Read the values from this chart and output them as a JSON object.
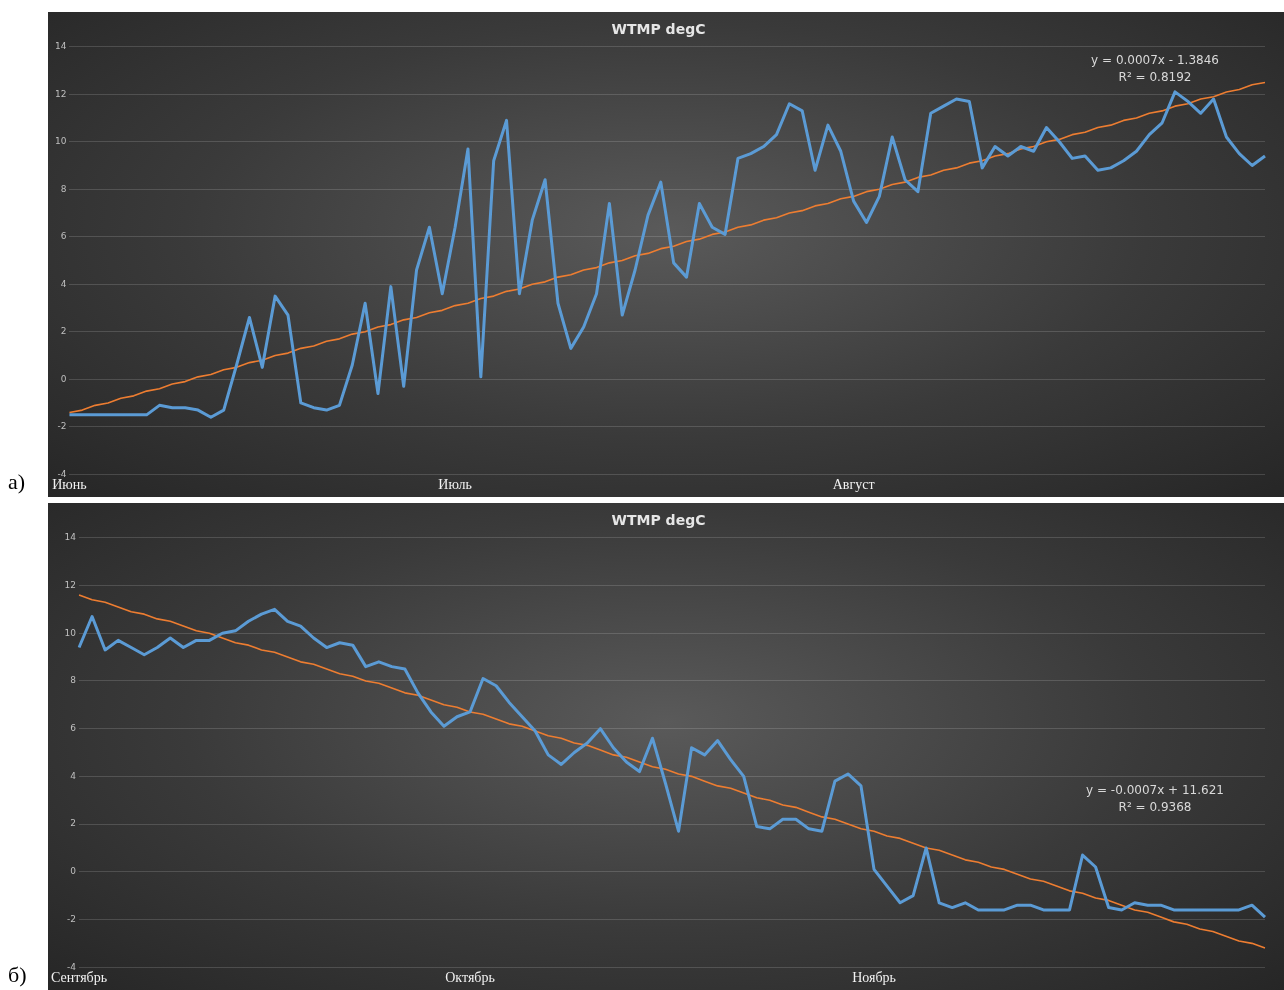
{
  "chart_data": [
    {
      "type": "line",
      "title": "WTMP degC",
      "categories": [
        "Июнь",
        null,
        null,
        null,
        null,
        null,
        null,
        null,
        null,
        null,
        null,
        null,
        null,
        null,
        null,
        null,
        null,
        null,
        null,
        null,
        null,
        null,
        null,
        null,
        null,
        null,
        null,
        null,
        null,
        null,
        "Июль",
        null,
        null,
        null,
        null,
        null,
        null,
        null,
        null,
        null,
        null,
        null,
        null,
        null,
        null,
        null,
        null,
        null,
        null,
        null,
        null,
        null,
        null,
        null,
        null,
        null,
        null,
        null,
        null,
        null,
        null,
        "Август",
        null,
        null,
        null,
        null,
        null,
        null,
        null,
        null,
        null,
        null,
        null,
        null,
        null,
        null,
        null,
        null,
        null,
        null,
        null,
        null,
        null,
        null,
        null,
        null,
        null,
        null,
        null,
        null,
        null,
        null,
        null,
        null
      ],
      "ylim": [
        -4,
        14
      ],
      "yticks": [
        -4,
        -2,
        0,
        2,
        4,
        6,
        8,
        10,
        12,
        14
      ],
      "grid": "y",
      "marker": "none",
      "annotations": [
        "а)",
        "y = 0.0007x - 1.3846",
        "R² = 0.8192"
      ],
      "series": [
        {
          "color": "#5b9bd5",
          "values": [
            -1.5,
            -1.5,
            -1.5,
            -1.5,
            -1.5,
            -1.5,
            -1.5,
            -1.1,
            -1.2,
            -1.2,
            -1.3,
            -1.6,
            -1.3,
            0.6,
            2.6,
            0.5,
            3.5,
            2.7,
            -1.0,
            -1.2,
            -1.3,
            -1.1,
            0.6,
            3.2,
            -0.6,
            3.9,
            -0.3,
            4.6,
            6.4,
            3.6,
            6.4,
            9.7,
            0.1,
            9.2,
            10.9,
            3.6,
            6.7,
            8.4,
            3.2,
            1.3,
            2.2,
            3.6,
            7.4,
            2.7,
            4.6,
            6.9,
            8.3,
            4.9,
            4.3,
            7.4,
            6.4,
            6.1,
            9.3,
            9.5,
            9.8,
            10.3,
            11.6,
            11.3,
            8.8,
            10.7,
            9.6,
            7.5,
            6.6,
            7.7,
            10.2,
            8.4,
            7.9,
            11.2,
            11.5,
            11.8,
            11.7,
            8.9,
            9.8,
            9.4,
            9.8,
            9.6,
            10.6,
            10.0,
            9.3,
            9.4,
            8.8,
            8.9,
            9.2,
            9.6,
            10.3,
            10.8,
            12.1,
            11.7,
            11.2,
            11.8,
            10.2,
            9.5,
            9.0,
            9.4
          ]
        },
        {
          "type": "line",
          "color": "#ed7d31",
          "values": [
            -1.4,
            -1.3,
            -1.1,
            -1.0,
            -0.8,
            -0.7,
            -0.5,
            -0.4,
            -0.2,
            -0.1,
            0.1,
            0.2,
            0.4,
            0.5,
            0.7,
            0.8,
            1.0,
            1.1,
            1.3,
            1.4,
            1.6,
            1.7,
            1.9,
            2.0,
            2.2,
            2.3,
            2.5,
            2.6,
            2.8,
            2.9,
            3.1,
            3.2,
            3.4,
            3.5,
            3.7,
            3.8,
            4.0,
            4.1,
            4.3,
            4.4,
            4.6,
            4.7,
            4.9,
            5.0,
            5.2,
            5.3,
            5.5,
            5.6,
            5.8,
            5.9,
            6.1,
            6.2,
            6.4,
            6.5,
            6.7,
            6.8,
            7.0,
            7.1,
            7.3,
            7.4,
            7.6,
            7.7,
            7.9,
            8.0,
            8.2,
            8.3,
            8.5,
            8.6,
            8.8,
            8.9,
            9.1,
            9.2,
            9.4,
            9.5,
            9.7,
            9.8,
            10.0,
            10.1,
            10.3,
            10.4,
            10.6,
            10.7,
            10.9,
            11.0,
            11.2,
            11.3,
            11.5,
            11.6,
            11.8,
            11.9,
            12.1,
            12.2,
            12.4,
            12.5
          ]
        }
      ]
    },
    {
      "type": "line",
      "title": "WTMP degC",
      "categories": [
        "Сентябрь",
        null,
        null,
        null,
        null,
        null,
        null,
        null,
        null,
        null,
        null,
        null,
        null,
        null,
        null,
        null,
        null,
        null,
        null,
        null,
        null,
        null,
        null,
        null,
        null,
        null,
        null,
        null,
        null,
        null,
        "Октябрь",
        null,
        null,
        null,
        null,
        null,
        null,
        null,
        null,
        null,
        null,
        null,
        null,
        null,
        null,
        null,
        null,
        null,
        null,
        null,
        null,
        null,
        null,
        null,
        null,
        null,
        null,
        null,
        null,
        null,
        null,
        "Ноябрь",
        null,
        null,
        null,
        null,
        null,
        null,
        null,
        null,
        null,
        null,
        null,
        null,
        null,
        null,
        null,
        null,
        null,
        null,
        null,
        null,
        null,
        null,
        null,
        null,
        null,
        null,
        null,
        null,
        null,
        null
      ],
      "ylim": [
        -4,
        14
      ],
      "yticks": [
        -4,
        -2,
        0,
        2,
        4,
        6,
        8,
        10,
        12,
        14
      ],
      "grid": "y",
      "marker": "none",
      "annotations": [
        "б)",
        "y = -0.0007x + 11.621",
        "R² = 0.9368"
      ],
      "series": [
        {
          "color": "#5b9bd5",
          "values": [
            9.4,
            10.7,
            9.3,
            9.7,
            9.4,
            9.1,
            9.4,
            9.8,
            9.4,
            9.7,
            9.7,
            10.0,
            10.1,
            10.5,
            10.8,
            11.0,
            10.5,
            10.3,
            9.8,
            9.4,
            9.6,
            9.5,
            8.6,
            8.8,
            8.6,
            8.5,
            7.5,
            6.7,
            6.1,
            6.5,
            6.7,
            8.1,
            7.8,
            7.1,
            6.5,
            5.9,
            4.9,
            4.5,
            5.0,
            5.4,
            6.0,
            5.2,
            4.6,
            4.2,
            5.6,
            3.7,
            1.7,
            5.2,
            4.9,
            5.5,
            4.7,
            4.0,
            1.9,
            1.8,
            2.2,
            2.2,
            1.8,
            1.7,
            3.8,
            4.1,
            3.6,
            0.1,
            -0.6,
            -1.3,
            -1.0,
            1.0,
            -1.3,
            -1.5,
            -1.3,
            -1.6,
            -1.6,
            -1.6,
            -1.4,
            -1.4,
            -1.6,
            -1.6,
            -1.6,
            0.7,
            0.2,
            -1.5,
            -1.6,
            -1.3,
            -1.4,
            -1.4,
            -1.6,
            -1.6,
            -1.6,
            -1.6,
            -1.6,
            -1.6,
            -1.4,
            -1.9
          ]
        },
        {
          "type": "line",
          "color": "#ed7d31",
          "values": [
            11.6,
            11.4,
            11.3,
            11.1,
            10.9,
            10.8,
            10.6,
            10.5,
            10.3,
            10.1,
            10.0,
            9.8,
            9.6,
            9.5,
            9.3,
            9.2,
            9.0,
            8.8,
            8.7,
            8.5,
            8.3,
            8.2,
            8.0,
            7.9,
            7.7,
            7.5,
            7.4,
            7.2,
            7.0,
            6.9,
            6.7,
            6.6,
            6.4,
            6.2,
            6.1,
            5.9,
            5.7,
            5.6,
            5.4,
            5.3,
            5.1,
            4.9,
            4.8,
            4.6,
            4.4,
            4.3,
            4.1,
            4.0,
            3.8,
            3.6,
            3.5,
            3.3,
            3.1,
            3.0,
            2.8,
            2.7,
            2.5,
            2.3,
            2.2,
            2.0,
            1.8,
            1.7,
            1.5,
            1.4,
            1.2,
            1.0,
            0.9,
            0.7,
            0.5,
            0.4,
            0.2,
            0.1,
            -0.1,
            -0.3,
            -0.4,
            -0.6,
            -0.8,
            -0.9,
            -1.1,
            -1.2,
            -1.4,
            -1.6,
            -1.7,
            -1.9,
            -2.1,
            -2.2,
            -2.4,
            -2.5,
            -2.7,
            -2.9,
            -3.0,
            -3.2
          ]
        }
      ]
    }
  ]
}
